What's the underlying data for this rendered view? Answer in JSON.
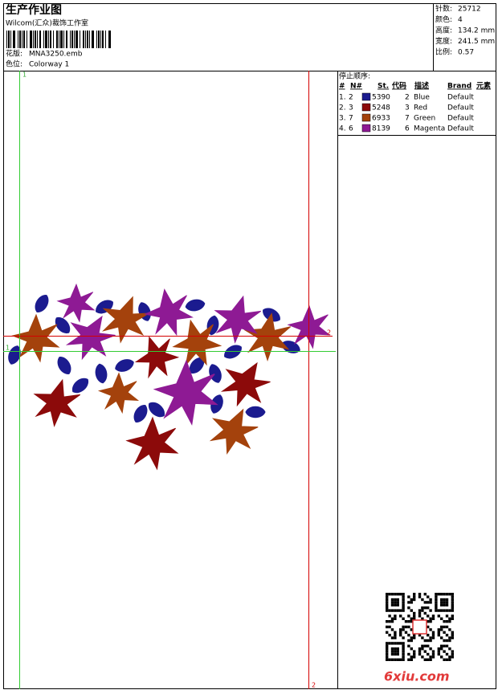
{
  "header": {
    "title": "生产作业图",
    "studio": "Wilcom(汇众)裁饰工作室",
    "design_label": "花版:",
    "design": "MNA3250.emb",
    "colorway_label": "色位:",
    "colorway": "Colorway 1"
  },
  "stats": [
    {
      "label": "针数:",
      "value": "25712"
    },
    {
      "label": "颜色:",
      "value": "4"
    },
    {
      "label": "高度:",
      "value": "134.2 mm"
    },
    {
      "label": "宽度:",
      "value": "241.5 mm"
    },
    {
      "label": "比例:",
      "value": "0.57"
    }
  ],
  "stop_sequence": {
    "title": "停止顺序:",
    "columns": [
      "#",
      "N#",
      "St.",
      "代码",
      "描述",
      "Brand",
      "元素"
    ],
    "rows": [
      {
        "index": "1.",
        "n": "2",
        "color": "#1b1b8f",
        "code": "5390",
        "thread": "2",
        "description": "Blue",
        "brand": "Default"
      },
      {
        "index": "2.",
        "n": "3",
        "color": "#8c0a0a",
        "code": "5248",
        "thread": "3",
        "description": "Red",
        "brand": "Default"
      },
      {
        "index": "3.",
        "n": "7",
        "color": "#a4420c",
        "code": "6933",
        "thread": "7",
        "description": "Green",
        "brand": "Default"
      },
      {
        "index": "4.",
        "n": "6",
        "color": "#8e1a94",
        "code": "8139",
        "thread": "6",
        "description": "Magenta",
        "brand": "Default"
      }
    ]
  },
  "guides": {
    "top": "1",
    "bottom": "2",
    "right": "2",
    "left": "1"
  },
  "watermark": "6xiu.com"
}
